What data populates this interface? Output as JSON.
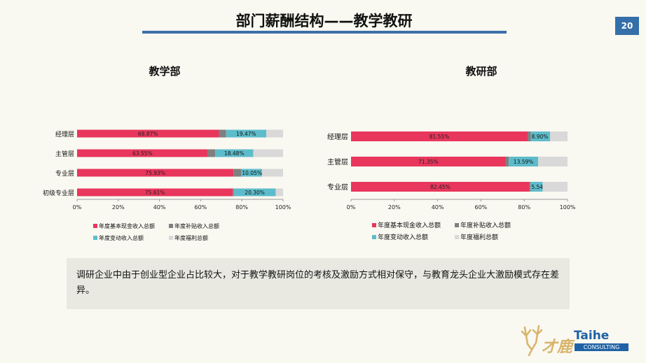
{
  "slide": {
    "title": "部门薪酬结构——教学教研",
    "page_number": "20"
  },
  "note": "调研企业中由于创业型企业占比较大，对于教学教研岗位的考核及激励方式相对保守，与教育龙头企业大激励模式存在差异。",
  "logo": {
    "cn": "才鹿",
    "en": "Taihe",
    "sub": "CONSULTING"
  },
  "colors": {
    "cash": "#e8365c",
    "subsidy": "#7f7f7f",
    "variable": "#5dbccb",
    "welfare": "#d9d9d9",
    "title_rule": "#3d6fa8",
    "page_badge": "#356fa9"
  },
  "chart_data": [
    {
      "type": "bar",
      "orientation": "horizontal",
      "stacked": "percent",
      "title": "教学部",
      "categories": [
        "经理层",
        "主管层",
        "专业层",
        "初级专业层"
      ],
      "xlim": [
        0,
        100
      ],
      "xticks": [
        "0%",
        "20%",
        "40%",
        "60%",
        "80%",
        "100%"
      ],
      "series": [
        {
          "name": "年度基本现金收入总额",
          "color": "#e8365c",
          "values": [
            68.87,
            63.55,
            75.93,
            75.61
          ],
          "labels": [
            "68.87%",
            "63.55%",
            "75.93%",
            "75.61%"
          ]
        },
        {
          "name": "年度补贴收入总额",
          "color": "#7f7f7f",
          "values": [
            3.5,
            3.5,
            3.8,
            0.5
          ],
          "labels": [
            "",
            "",
            "",
            ""
          ]
        },
        {
          "name": "年度变动收入总额",
          "color": "#5dbccb",
          "values": [
            19.47,
            18.48,
            10.05,
            20.3
          ],
          "labels": [
            "19.47%",
            "18.48%",
            "10.05%",
            "20.30%"
          ]
        },
        {
          "name": "年度福利总额",
          "color": "#d9d9d9",
          "values": [
            8.16,
            14.47,
            10.22,
            3.59
          ],
          "labels": [
            "",
            "",
            "",
            ""
          ]
        }
      ],
      "legend": "bottom"
    },
    {
      "type": "bar",
      "orientation": "horizontal",
      "stacked": "percent",
      "title": "教研部",
      "categories": [
        "经理层",
        "主管层",
        "专业层"
      ],
      "xlim": [
        0,
        100
      ],
      "xticks": [
        "0%",
        "20%",
        "40%",
        "60%",
        "80%",
        "100%"
      ],
      "series": [
        {
          "name": "年度基本现金收入总额",
          "color": "#e8365c",
          "values": [
            81.55,
            71.35,
            82.45
          ],
          "labels": [
            "81.55%",
            "71.35%",
            "82.45%"
          ]
        },
        {
          "name": "年度补贴收入总额",
          "color": "#7f7f7f",
          "values": [
            1.5,
            1.5,
            0.5
          ],
          "labels": [
            "",
            "",
            ""
          ]
        },
        {
          "name": "年度变动收入总额",
          "color": "#5dbccb",
          "values": [
            8.9,
            13.59,
            5.54
          ],
          "labels": [
            "8.90%",
            "13.59%",
            "5.54%"
          ]
        },
        {
          "name": "年度福利总额",
          "color": "#d9d9d9",
          "values": [
            8.05,
            13.56,
            11.51
          ],
          "labels": [
            "",
            "",
            ""
          ]
        }
      ],
      "legend": "bottom"
    }
  ]
}
